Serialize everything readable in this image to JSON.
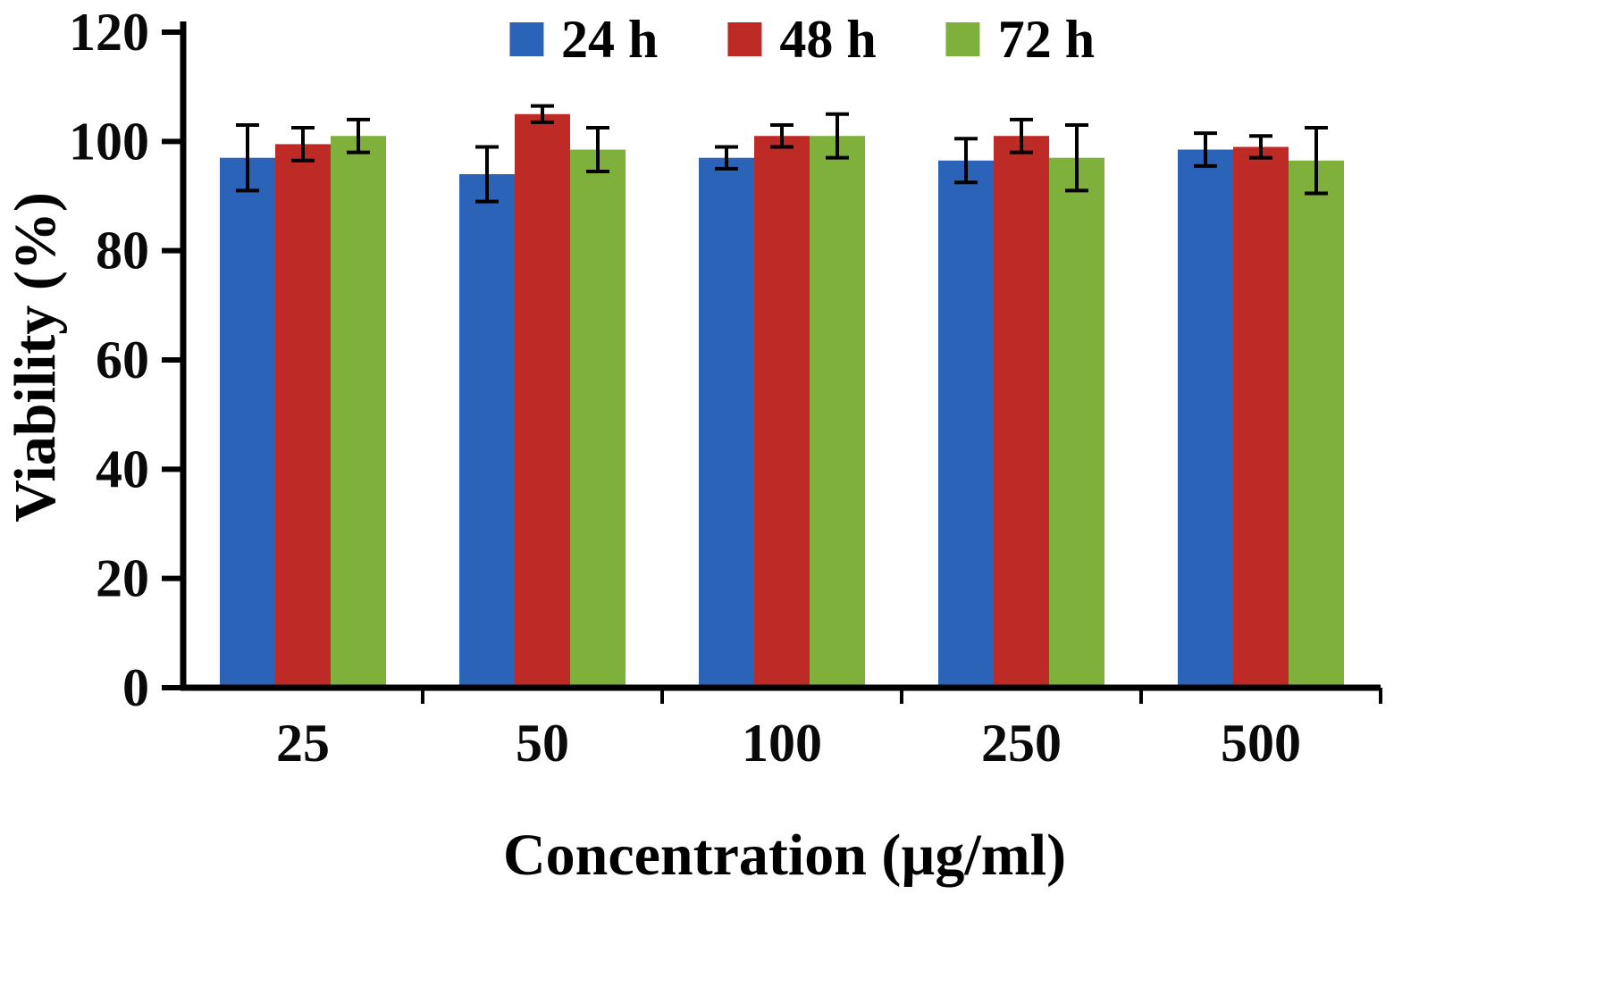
{
  "chart_data": {
    "type": "bar",
    "title": "",
    "xlabel": "Concentration (µg/ml)",
    "ylabel": "Viability (%)",
    "ylim": [
      0,
      120
    ],
    "yticks": [
      0,
      20,
      40,
      60,
      80,
      100,
      120
    ],
    "categories": [
      "25",
      "50",
      "100",
      "250",
      "500"
    ],
    "series": [
      {
        "name": "24 h",
        "color": "#2B63B8",
        "values": [
          97,
          94,
          97,
          96.5,
          98.5
        ],
        "errors": [
          6,
          5,
          2,
          4,
          3
        ]
      },
      {
        "name": "48 h",
        "color": "#BE2A26",
        "values": [
          99.5,
          105,
          101,
          101,
          99
        ],
        "errors": [
          3,
          1.5,
          2,
          3,
          2
        ]
      },
      {
        "name": "72 h",
        "color": "#7FB03C",
        "values": [
          101,
          98.5,
          101,
          97,
          96.5
        ],
        "errors": [
          3,
          4,
          4,
          6,
          6
        ]
      }
    ],
    "legend_position": "top",
    "grid": false,
    "error_bar_color": "#000000",
    "axis_color": "#000000"
  }
}
